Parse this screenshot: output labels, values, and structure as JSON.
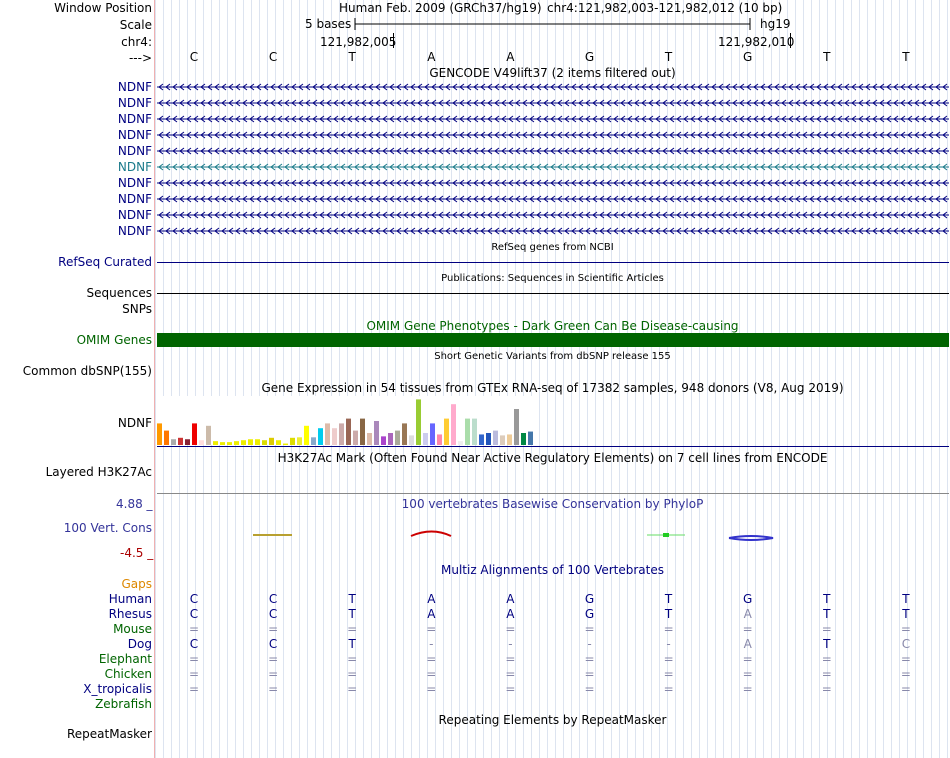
{
  "colors": {
    "navy": "#000080",
    "green": "#006400",
    "orange": "#dd8800",
    "red": "#aa0000",
    "teal": "#1a7a8a",
    "phylop_blue": "#333399"
  },
  "header": {
    "window_position_label": "Window Position",
    "assembly_text": "Human Feb. 2009 (GRCh37/hg19)",
    "position_text": "chr4:121,982,003-121,982,012 (10 bp)",
    "scale_label": "Scale",
    "scale_bases": "5 bases",
    "scale_db": "hg19",
    "chrom_label": "chr4:",
    "coord_left": "121,982,005",
    "coord_right": "121,982,010",
    "strand_label": "--->"
  },
  "sequence": [
    "C",
    "C",
    "T",
    "A",
    "A",
    "G",
    "T",
    "G",
    "T",
    "T"
  ],
  "gencode": {
    "title": "GENCODE V49lift37 (2 items filtered out)",
    "genes": [
      {
        "name": "NDNF",
        "highlight": false
      },
      {
        "name": "NDNF",
        "highlight": false
      },
      {
        "name": "NDNF",
        "highlight": false
      },
      {
        "name": "NDNF",
        "highlight": false
      },
      {
        "name": "NDNF",
        "highlight": false
      },
      {
        "name": "NDNF",
        "highlight": true
      },
      {
        "name": "NDNF",
        "highlight": false
      },
      {
        "name": "NDNF",
        "highlight": false
      },
      {
        "name": "NDNF",
        "highlight": false
      },
      {
        "name": "NDNF",
        "highlight": false
      }
    ]
  },
  "refseq": {
    "title": "RefSeq genes from NCBI",
    "label": "RefSeq Curated"
  },
  "publications": {
    "title": "Publications: Sequences in Scientific Articles",
    "label": "Sequences"
  },
  "snps": {
    "label": "SNPs"
  },
  "omim": {
    "title": "OMIM Gene Phenotypes - Dark Green Can Be Disease-causing",
    "label": "OMIM Genes"
  },
  "dbsnp": {
    "title": "Short Genetic Variants from dbSNP release 155",
    "label": "Common dbSNP(155)"
  },
  "gtex": {
    "title": "Gene Expression in 54 tissues from GTEx RNA-seq of 17382 samples, 948 donors (V8, Aug 2019)",
    "label": "NDNF",
    "bar_heights": [
      0.45,
      0.3,
      0.12,
      0.15,
      0.12,
      0.45,
      0.1,
      0.4,
      0.08,
      0.06,
      0.06,
      0.08,
      0.1,
      0.12,
      0.12,
      0.1,
      0.15,
      0.1,
      0.03,
      0.15,
      0.16,
      0.4,
      0.16,
      0.35,
      0.45,
      0.35,
      0.45,
      0.55,
      0.3,
      0.55,
      0.25,
      0.5,
      0.18,
      0.25,
      0.3,
      0.45,
      0.2,
      0.95,
      0.25,
      0.45,
      0.22,
      0.55,
      0.85,
      0.08,
      0.55,
      0.55,
      0.22,
      0.25,
      0.3,
      0.2,
      0.22,
      0.75,
      0.25,
      0.28
    ],
    "bar_colors": [
      "#ff9900",
      "#ff7700",
      "#aaaaaa",
      "#cc3333",
      "#882233",
      "#ee0000",
      "#ffdddd",
      "#ccbbaa",
      "#eeee00",
      "#eeee00",
      "#eeee00",
      "#eeee00",
      "#eeee00",
      "#eeee00",
      "#eeee00",
      "#dddd00",
      "#ddcc00",
      "#eeee00",
      "#eeee00",
      "#dddd00",
      "#eeee33",
      "#ffff00",
      "#88aacc",
      "#00ccee",
      "#ddbbaa",
      "#eecccc",
      "#ccaaaa",
      "#996655",
      "#ccaaaa",
      "#886644",
      "#ddbbaa",
      "#aa88bb",
      "#aa44cc",
      "#aa66bb",
      "#aaaa99",
      "#997755",
      "#dddddd",
      "#99cc33",
      "#ccccee",
      "#6666ff",
      "#ff88aa",
      "#ffcc33",
      "#ffaacc",
      "#eeeeee",
      "#aaddaa",
      "#bbddcc",
      "#3366cc",
      "#2255bb",
      "#bbbbdd",
      "#ddccbb",
      "#eecc99",
      "#999999",
      "#008844",
      "#4477aa"
    ]
  },
  "h3k27ac": {
    "title": "H3K27Ac Mark (Often Found Near Active Regulatory Elements) on 7 cell lines from ENCODE",
    "label": "Layered H3K27Ac"
  },
  "phylop": {
    "title": "100 vertebrates Basewise Conservation by PhyloP",
    "label": "100 Vert. Cons",
    "max_label": "4.88 _",
    "min_label": "-4.5 _"
  },
  "multiz": {
    "title": "Multiz Alignments of 100 Vertebrates",
    "gaps_label": "Gaps",
    "species": [
      {
        "name": "Human",
        "color": "#000080",
        "bases": [
          "C",
          "C",
          "T",
          "A",
          "A",
          "G",
          "T",
          "G",
          "T",
          "T"
        ]
      },
      {
        "name": "Rhesus",
        "color": "#000080",
        "bases": [
          "C",
          "C",
          "T",
          "A",
          "A",
          "G",
          "T",
          "A",
          "T",
          "T"
        ]
      },
      {
        "name": "Mouse",
        "color": "#006400",
        "bases": [
          "=",
          "=",
          "=",
          "=",
          "=",
          "=",
          "=",
          "=",
          "=",
          "="
        ]
      },
      {
        "name": "Dog",
        "color": "#000080",
        "bases": [
          "C",
          "C",
          "T",
          "-",
          "-",
          "-",
          "-",
          "A",
          "T",
          "C"
        ]
      },
      {
        "name": "Elephant",
        "color": "#006400",
        "bases": [
          "=",
          "=",
          "=",
          "=",
          "=",
          "=",
          "=",
          "=",
          "=",
          "="
        ]
      },
      {
        "name": "Chicken",
        "color": "#006400",
        "bases": [
          "=",
          "=",
          "=",
          "=",
          "=",
          "=",
          "=",
          "=",
          "=",
          "="
        ]
      },
      {
        "name": "X_tropicalis",
        "color": "#000080",
        "bases": [
          "=",
          "=",
          "=",
          "=",
          "=",
          "=",
          "=",
          "=",
          "=",
          "="
        ]
      },
      {
        "name": "Zebrafish",
        "color": "#006400",
        "bases": [
          "",
          "",
          "",
          "",
          "",
          "",
          "",
          "",
          "",
          ""
        ]
      }
    ]
  },
  "repeatmasker": {
    "title": "Repeating Elements by RepeatMasker",
    "label": "RepeatMasker"
  }
}
